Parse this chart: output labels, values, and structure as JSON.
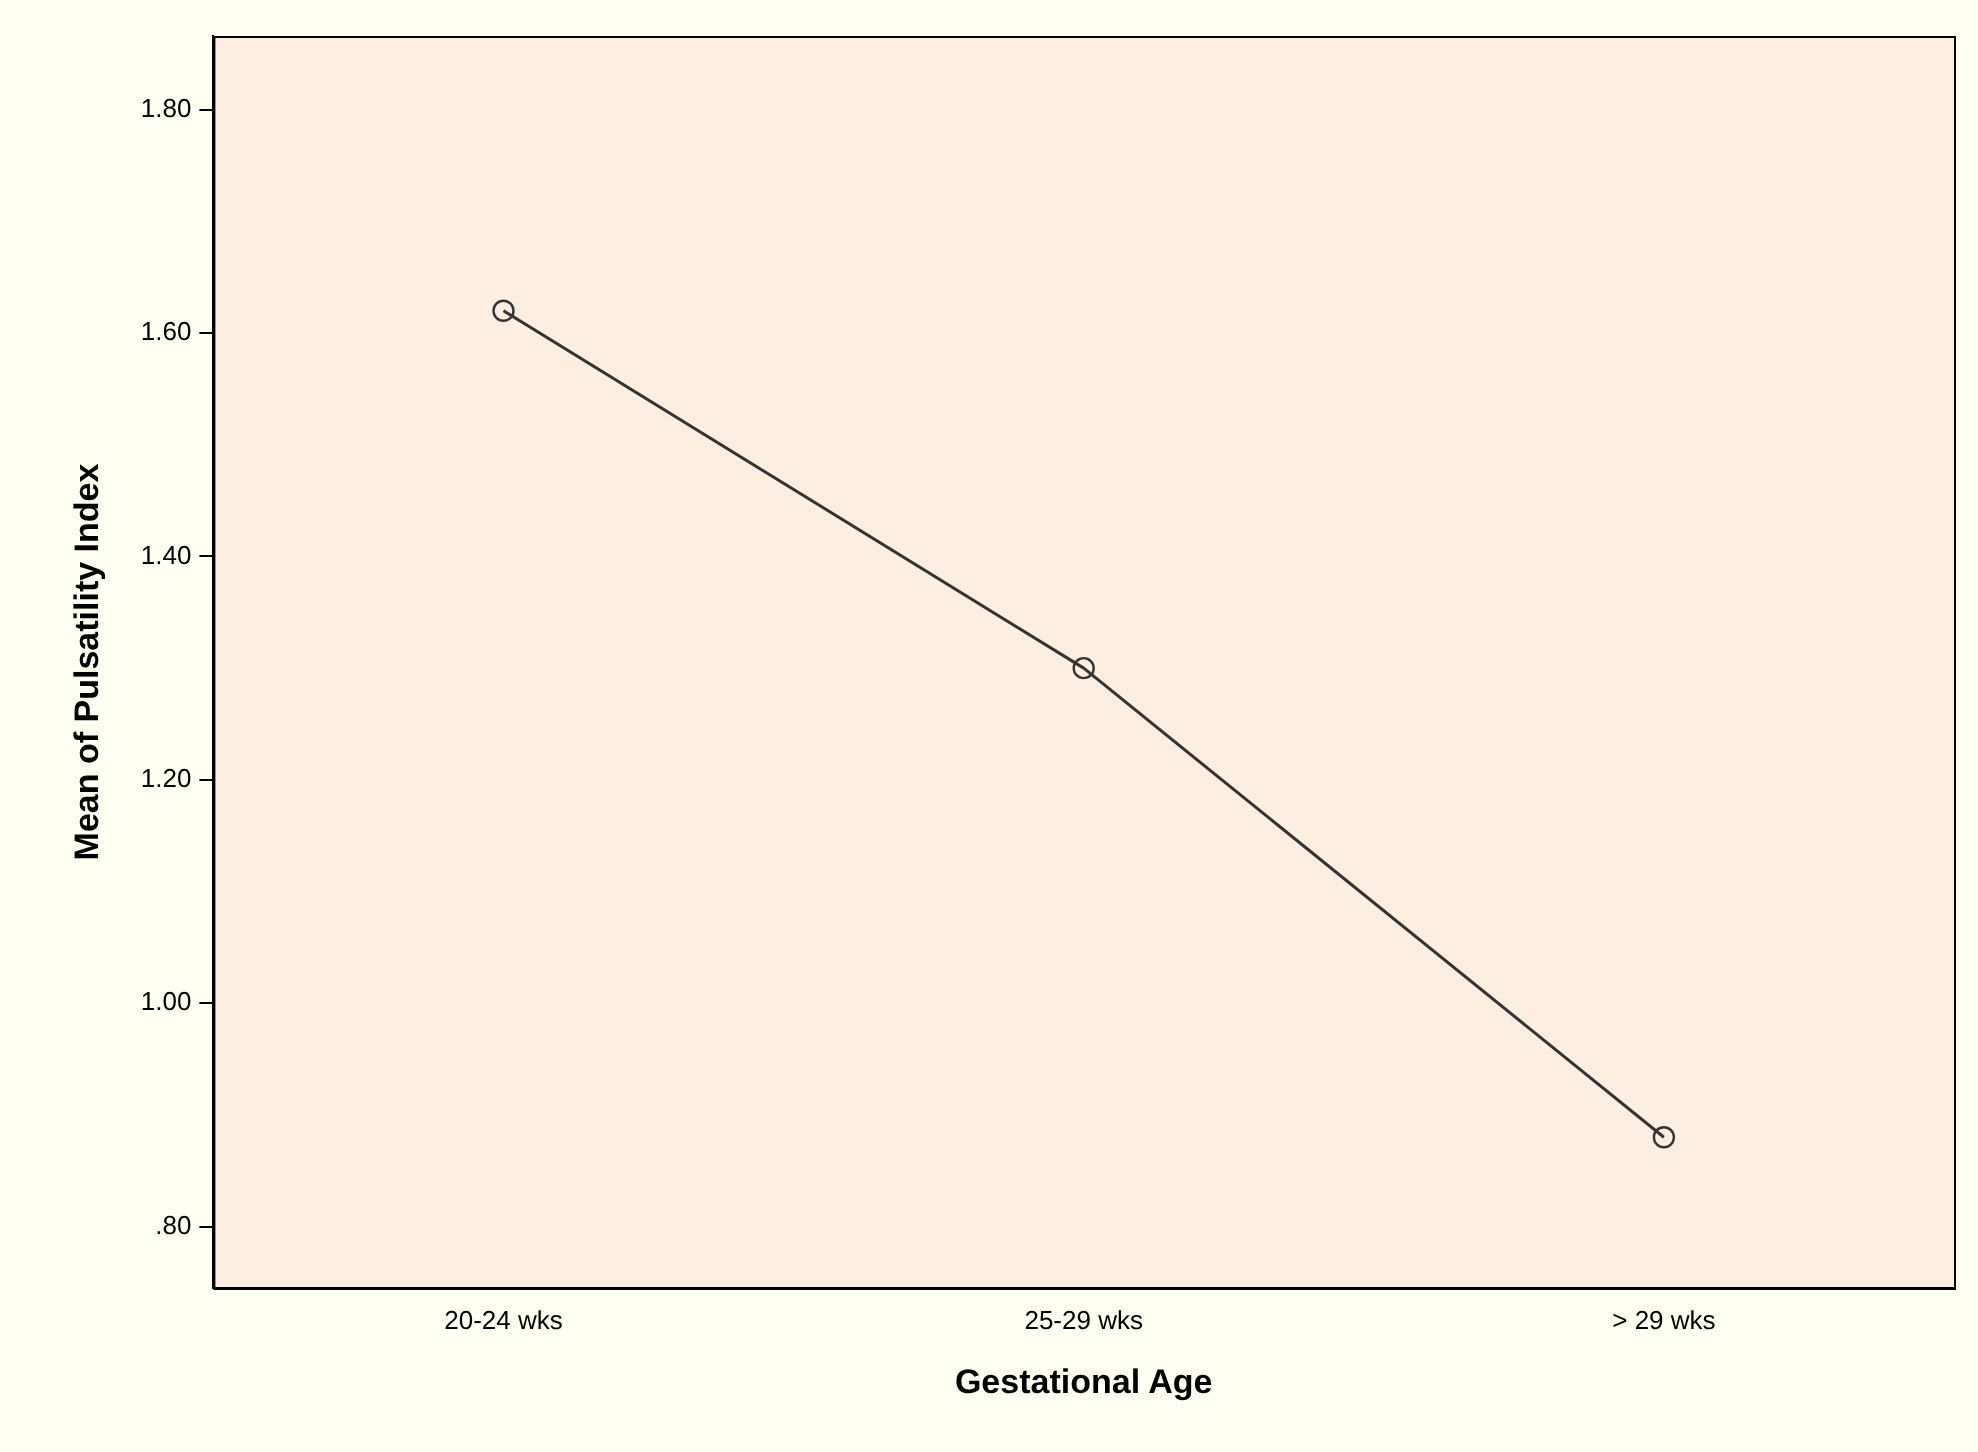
{
  "chart_data": {
    "type": "line",
    "xlabel": "Gestational Age",
    "ylabel": "Mean of Pulsatility Index",
    "categories": [
      "20-24 wks",
      "25-29 wks",
      "> 29 wks"
    ],
    "series": [
      {
        "color": "#333333",
        "values": [
          1.62,
          1.3,
          0.88
        ]
      }
    ],
    "ylim": [
      0.745,
      1.866
    ],
    "yticks": [
      {
        "value": 0.8,
        "label": ".80"
      },
      {
        "value": 1.0,
        "label": "1.00"
      },
      {
        "value": 1.2,
        "label": "1.20"
      },
      {
        "value": 1.4,
        "label": "1.40"
      },
      {
        "value": 1.6,
        "label": "1.60"
      },
      {
        "value": 1.8,
        "label": "1.80"
      }
    ],
    "grid": false,
    "legend": false,
    "marker": "circle",
    "line_style": "solid"
  }
}
